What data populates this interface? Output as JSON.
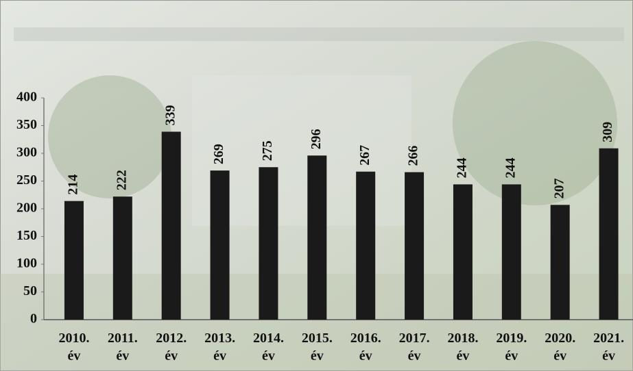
{
  "chart_data": {
    "type": "bar",
    "categories": [
      "2010. év",
      "2011. év",
      "2012. év",
      "2013. év",
      "2014. év",
      "2015. év",
      "2016. év",
      "2017. év",
      "2018. év",
      "2019. év",
      "2020. év",
      "2021. év"
    ],
    "values": [
      214,
      222,
      339,
      269,
      275,
      296,
      267,
      266,
      244,
      244,
      207,
      309
    ],
    "color": "#1a1a1a",
    "ylim": [
      0,
      400
    ],
    "yticks": [
      0,
      50,
      100,
      150,
      200,
      250,
      300,
      350,
      400
    ],
    "data_labels": true
  }
}
